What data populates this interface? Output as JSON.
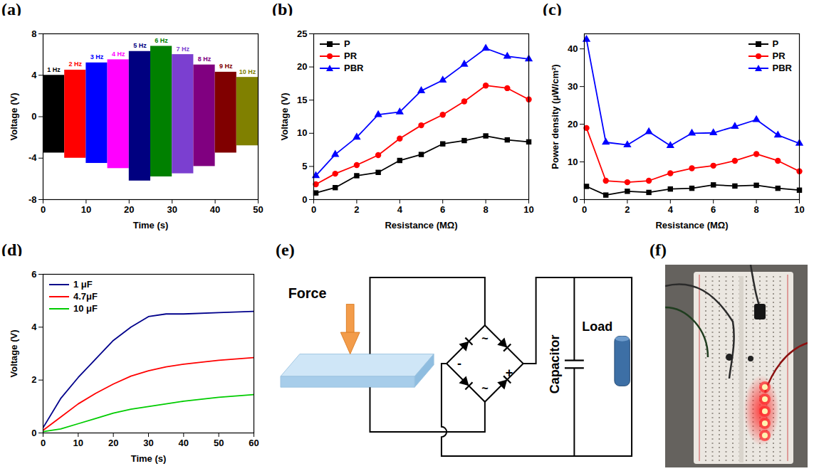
{
  "chart_data": [
    {
      "panel_label": "(a)",
      "type": "band",
      "x_label": "Time (s)",
      "y_label": "Voltage (V)",
      "xlim": [
        0,
        50
      ],
      "xticks": [
        0,
        10,
        20,
        30,
        40,
        50
      ],
      "ylim": [
        -8,
        8
      ],
      "yticks": [
        -8,
        -4,
        0,
        4,
        8
      ],
      "grid": false,
      "segments": [
        {
          "label": "1 Hz",
          "color": "#000000",
          "time": [
            0,
            5
          ],
          "max": 4.0,
          "min": -3.5
        },
        {
          "label": "2 Hz",
          "color": "#ff0000",
          "time": [
            5,
            10
          ],
          "max": 4.5,
          "min": -4.0
        },
        {
          "label": "3 Hz",
          "color": "#0000ff",
          "time": [
            10,
            15
          ],
          "max": 5.2,
          "min": -4.5
        },
        {
          "label": "4 Hz",
          "color": "#ff00ff",
          "time": [
            15,
            20
          ],
          "max": 5.5,
          "min": -5.0
        },
        {
          "label": "5 Hz",
          "color": "#000080",
          "time": [
            20,
            25
          ],
          "max": 6.3,
          "min": -6.2
        },
        {
          "label": "6 Hz",
          "color": "#008000",
          "time": [
            25,
            30
          ],
          "max": 6.8,
          "min": -5.8
        },
        {
          "label": "7 Hz",
          "color": "#7b3fd0",
          "time": [
            30,
            35
          ],
          "max": 6.0,
          "min": -5.5
        },
        {
          "label": "8 Hz",
          "color": "#800080",
          "time": [
            35,
            40
          ],
          "max": 5.0,
          "min": -4.8
        },
        {
          "label": "9 Hz",
          "color": "#800000",
          "time": [
            40,
            45
          ],
          "max": 4.3,
          "min": -3.5
        },
        {
          "label": "10 Hz",
          "color": "#808000",
          "time": [
            45,
            50
          ],
          "max": 3.8,
          "min": -2.8
        }
      ]
    },
    {
      "panel_label": "(b)",
      "type": "line",
      "x_label": "Resistance (MΩ)",
      "y_label": "Voltage (V)",
      "xlim": [
        0,
        10
      ],
      "xticks": [
        0,
        2,
        4,
        6,
        8,
        10
      ],
      "ylim": [
        0,
        25
      ],
      "yticks": [
        0,
        5,
        10,
        15,
        20,
        25
      ],
      "grid": false,
      "legend": "top-left",
      "x": [
        0.1,
        1,
        2,
        3,
        4,
        5,
        6,
        7,
        8,
        9,
        10
      ],
      "series": [
        {
          "name": "P",
          "color": "#000000",
          "marker": "square",
          "values": [
            1.0,
            1.8,
            3.6,
            4.1,
            5.9,
            6.8,
            8.4,
            8.9,
            9.6,
            9.0,
            8.7
          ]
        },
        {
          "name": "PR",
          "color": "#ff0000",
          "marker": "circle",
          "values": [
            2.3,
            3.9,
            5.2,
            6.7,
            9.2,
            11.2,
            12.8,
            14.8,
            17.2,
            16.8,
            15.1
          ]
        },
        {
          "name": "PBR",
          "color": "#0000ff",
          "marker": "triangle",
          "values": [
            3.6,
            6.8,
            9.4,
            12.8,
            13.2,
            16.4,
            18.0,
            20.4,
            22.8,
            21.6,
            21.2
          ]
        }
      ]
    },
    {
      "panel_label": "(c)",
      "type": "line",
      "x_label": "Resistance (MΩ)",
      "y_label": "Power density (μW/cm²)",
      "xlim": [
        0,
        10
      ],
      "xticks": [
        0,
        2,
        4,
        6,
        8,
        10
      ],
      "ylim": [
        0,
        44
      ],
      "yticks": [
        0,
        10,
        20,
        30,
        40
      ],
      "grid": false,
      "legend": "top-right",
      "x": [
        0.1,
        1,
        2,
        3,
        4,
        5,
        6,
        7,
        8,
        9,
        10
      ],
      "series": [
        {
          "name": "P",
          "color": "#000000",
          "marker": "square",
          "values": [
            3.5,
            1.2,
            2.2,
            1.9,
            2.8,
            3.0,
            3.9,
            3.6,
            3.8,
            3.0,
            2.5
          ]
        },
        {
          "name": "PR",
          "color": "#ff0000",
          "marker": "circle",
          "values": [
            19.0,
            5.0,
            4.6,
            5.0,
            7.0,
            8.3,
            9.0,
            10.3,
            12.1,
            10.3,
            7.5
          ]
        },
        {
          "name": "PBR",
          "color": "#0000ff",
          "marker": "triangle",
          "values": [
            42.5,
            15.2,
            14.5,
            18.0,
            14.3,
            17.6,
            17.7,
            19.4,
            21.2,
            17.1,
            14.9
          ]
        }
      ]
    },
    {
      "panel_label": "(d)",
      "type": "line",
      "x_label": "Time (s)",
      "y_label": "Voltage (V)",
      "xlim": [
        0,
        60
      ],
      "xticks": [
        0,
        10,
        20,
        30,
        40,
        50,
        60
      ],
      "ylim": [
        0,
        6
      ],
      "yticks": [
        0,
        2,
        4,
        6
      ],
      "grid": false,
      "legend": "top-left",
      "x": [
        0,
        5,
        10,
        15,
        20,
        25,
        30,
        35,
        40,
        50,
        60
      ],
      "series": [
        {
          "name": "1 μF",
          "color": "#00008b",
          "values": [
            0.2,
            1.3,
            2.1,
            2.8,
            3.5,
            4.0,
            4.4,
            4.5,
            4.5,
            4.55,
            4.6
          ]
        },
        {
          "name": "4.7μF",
          "color": "#ff0000",
          "values": [
            0.1,
            0.6,
            1.1,
            1.5,
            1.85,
            2.15,
            2.35,
            2.5,
            2.6,
            2.75,
            2.85
          ]
        },
        {
          "name": "10 μF",
          "color": "#00cc00",
          "values": [
            0.05,
            0.15,
            0.35,
            0.55,
            0.75,
            0.9,
            1.0,
            1.1,
            1.2,
            1.35,
            1.45
          ]
        }
      ]
    }
  ],
  "diagram": {
    "panel_label": "(e)",
    "force_label": "Force",
    "bridge_labels": {
      "top": "~",
      "bottom": "~",
      "left": "-",
      "right": "+"
    },
    "capacitor_label": "Capacitor",
    "load_label": "Load"
  },
  "photo": {
    "panel_label": "(f)"
  }
}
